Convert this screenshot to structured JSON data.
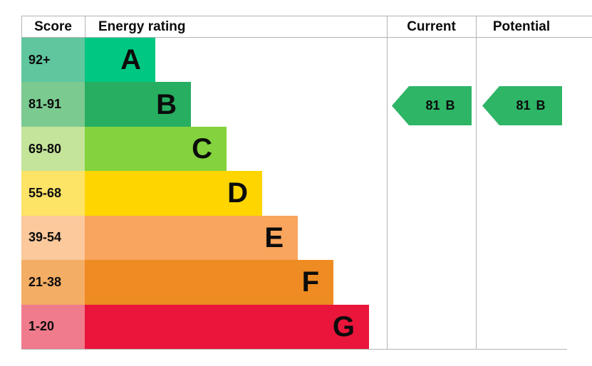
{
  "header": {
    "score": "Score",
    "energy_rating": "Energy rating",
    "current": "Current",
    "potential": "Potential"
  },
  "bands": [
    {
      "score": "92+",
      "letter": "A",
      "bar_color": "#00c781",
      "score_cell_color": "#5fc69e"
    },
    {
      "score": "81-91",
      "letter": "B",
      "bar_color": "#27ae60",
      "score_cell_color": "#7bca90"
    },
    {
      "score": "69-80",
      "letter": "C",
      "bar_color": "#83d23e",
      "score_cell_color": "#c4e49a"
    },
    {
      "score": "55-68",
      "letter": "D",
      "bar_color": "#ffd500",
      "score_cell_color": "#fde366"
    },
    {
      "score": "39-54",
      "letter": "E",
      "bar_color": "#faa55d",
      "score_cell_color": "#fcc99c"
    },
    {
      "score": "21-38",
      "letter": "F",
      "bar_color": "#ee8b22",
      "score_cell_color": "#f4ad64"
    },
    {
      "score": "1-20",
      "letter": "G",
      "bar_color": "#e9153b",
      "score_cell_color": "#ef7b8c"
    }
  ],
  "current": {
    "label": "81 B",
    "band": "B",
    "color": "#2eb566"
  },
  "potential": {
    "label": "81 B",
    "band": "B",
    "color": "#2eb566"
  },
  "colors": {
    "border": "#b1b4b6",
    "text": "#0b0c0c",
    "background": "#ffffff"
  },
  "chart_data": {
    "type": "bar",
    "title": "Energy efficiency rating chart",
    "columns": [
      "Score",
      "Energy rating",
      "Current",
      "Potential"
    ],
    "categories": [
      "A",
      "B",
      "C",
      "D",
      "E",
      "F",
      "G"
    ],
    "score_ranges": [
      "92+",
      "81-91",
      "69-80",
      "55-68",
      "39-54",
      "21-38",
      "1-20"
    ],
    "bar_relative_widths": [
      1,
      1.5,
      2,
      2.5,
      3,
      3.5,
      4
    ],
    "band_colors": [
      "#00c781",
      "#27ae60",
      "#83d23e",
      "#ffd500",
      "#faa55d",
      "#ee8b22",
      "#e9153b"
    ],
    "current": {
      "score": 81,
      "band": "B"
    },
    "potential": {
      "score": 81,
      "band": "B"
    },
    "orientation": "horizontal",
    "grid": false,
    "legend_position": "none"
  }
}
